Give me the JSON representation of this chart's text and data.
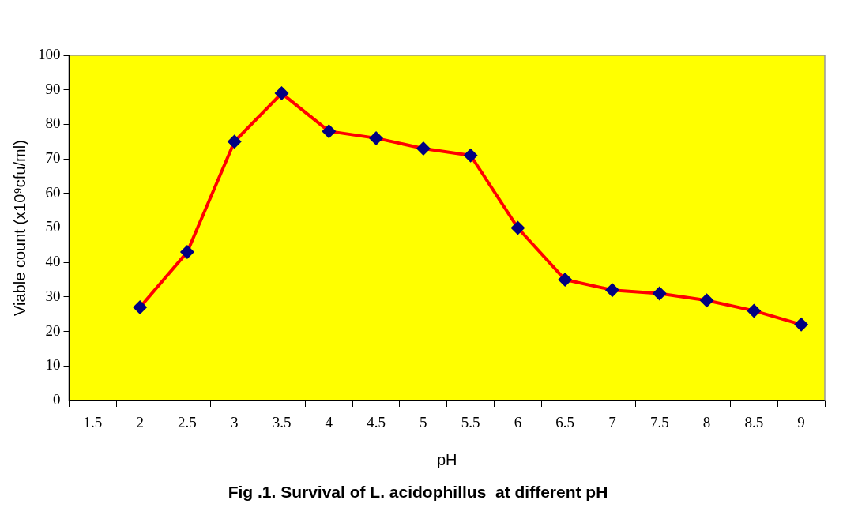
{
  "chart_data": {
    "type": "line",
    "title": "Fig .1. Survival of L. acidophillus  at different pH",
    "xlabel": "pH",
    "ylabel": "Viable count (x10⁹cfu/ml)",
    "categories": [
      "1.5",
      "2",
      "2.5",
      "3",
      "3.5",
      "4",
      "4.5",
      "5",
      "5.5",
      "6",
      "6.5",
      "7",
      "7.5",
      "8",
      "8.5",
      "9"
    ],
    "series": [
      {
        "color": "#ff0000",
        "colors": [
          "#000080",
          "#000080",
          "#000080",
          "#000080",
          "#000080",
          "#000080",
          "#000080",
          "#000080",
          "#000080",
          "#000080",
          "#000080",
          "#000080",
          "#000080",
          "#000080",
          "#000080",
          "#000080"
        ],
        "values": [
          null,
          27,
          43,
          75,
          89,
          78,
          76,
          73,
          71,
          50,
          35,
          32,
          31,
          29,
          26,
          22
        ]
      }
    ],
    "ylim": [
      0,
      100
    ],
    "yticks": [
      0,
      10,
      20,
      30,
      40,
      50,
      60,
      70,
      80,
      90,
      100
    ],
    "grid": false,
    "marker": "diamond",
    "line_style": "solid"
  }
}
